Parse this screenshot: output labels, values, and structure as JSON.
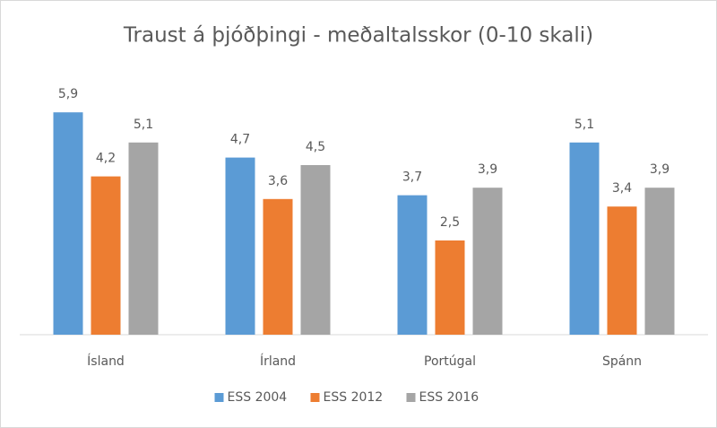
{
  "chart_data": {
    "type": "bar",
    "title": "Traust á þjóðþingi - meðaltalsskor (0-10 skali)",
    "categories": [
      "Ísland",
      "Írland",
      "Portúgal",
      "Spánn"
    ],
    "series": [
      {
        "name": "ESS 2004",
        "color": "#5b9bd5",
        "values": [
          5.9,
          4.7,
          3.7,
          5.1
        ],
        "value_labels": [
          "5,9",
          "4,7",
          "3,7",
          "5,1"
        ]
      },
      {
        "name": "ESS 2012",
        "color": "#ed7d31",
        "values": [
          4.2,
          3.6,
          2.5,
          3.4
        ],
        "value_labels": [
          "4,2",
          "3,6",
          "2,5",
          "3,4"
        ]
      },
      {
        "name": "ESS 2016",
        "color": "#a5a5a5",
        "values": [
          5.1,
          4.5,
          3.9,
          3.9
        ],
        "value_labels": [
          "5,1",
          "4,5",
          "3,9",
          "3,9"
        ]
      }
    ],
    "legend": "bottom"
  }
}
